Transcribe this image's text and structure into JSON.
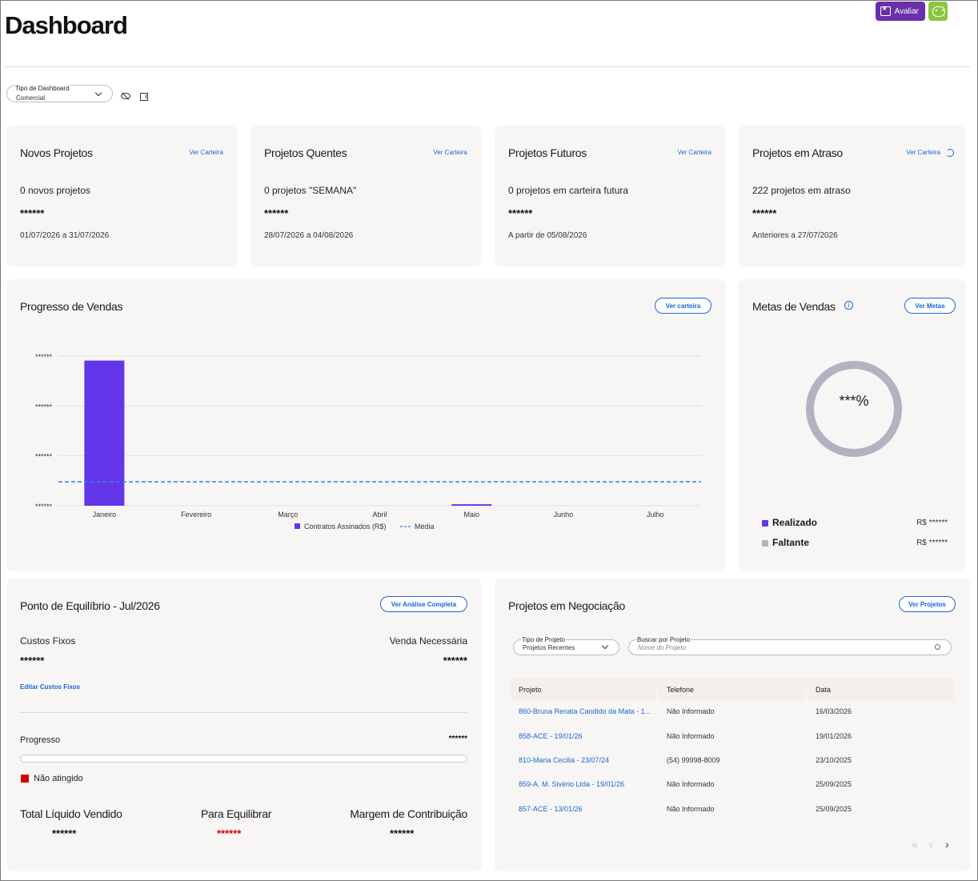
{
  "header": {
    "title": "Dashboard",
    "avaliar_label": "Avaliar"
  },
  "filters": {
    "dashboard_type_label": "Tipo de Dashboard",
    "dashboard_type_value": "Comercial"
  },
  "summary_cards": [
    {
      "title": "Novos Projetos",
      "link": "Ver Carteira",
      "count_text": "0 novos projetos",
      "masked_value": "******",
      "range": "01/07/2026 a 31/07/2026"
    },
    {
      "title": "Projetos Quentes",
      "link": "Ver Carteira",
      "count_text": "0 projetos \"SEMANA\"",
      "masked_value": "******",
      "range": "28/07/2026 a 04/08/2026"
    },
    {
      "title": "Projetos Futuros",
      "link": "Ver Carteira",
      "count_text": "0 projetos em carteira futura",
      "masked_value": "******",
      "range": "A partir de 05/08/2026"
    },
    {
      "title": "Projetos em Atraso",
      "link": "Ver Carteira",
      "count_text": "222 projetos em atraso",
      "masked_value": "******",
      "range": "Anteriores a 27/07/2026"
    }
  ],
  "sales_progress": {
    "title": "Progresso de Vendas",
    "button": "Ver carteira",
    "y_tick_labels": [
      "******",
      "******",
      "******",
      "******"
    ],
    "legend_bars": "Contratos Assinados (R$)",
    "legend_avg": "Média"
  },
  "chart_data": {
    "type": "bar",
    "categories": [
      "Janeiro",
      "Fevereiro",
      "Março",
      "Abril",
      "Maio",
      "Junho",
      "Julho"
    ],
    "series": [
      {
        "name": "Contratos Assinados (R$)",
        "values": [
          0.97,
          0,
          0,
          0,
          0.01,
          0,
          0
        ]
      },
      {
        "name": "Média",
        "values": [
          0.16,
          0.16,
          0.16,
          0.16,
          0.16,
          0.16,
          0.16
        ]
      }
    ],
    "ylim": [
      0,
      1
    ],
    "y_values_masked": true,
    "grid": true,
    "legend_placement": "bottom-center",
    "colors": {
      "bars": "#6236e8",
      "average": "#2f7fe0"
    }
  },
  "sales_goals": {
    "title": "Metas de Vendas",
    "button": "Ver Metas",
    "percent_label": "***%",
    "legend": [
      {
        "name": "Realizado",
        "value": "R$ ******",
        "color": "#6236e8"
      },
      {
        "name": "Faltante",
        "value": "R$ ******",
        "color": "#b1b3c3"
      }
    ]
  },
  "break_even": {
    "title": "Ponto de Equilíbrio - Jul/2026",
    "button": "Ver Análise Completa",
    "fixed_costs_label": "Custos Fixos",
    "fixed_costs_value": "******",
    "needed_sale_label": "Venda Necessária",
    "needed_sale_value": "******",
    "edit_link": "Editar Custos Fixos",
    "progress_label": "Progresso",
    "progress_value": "******",
    "status": "Não atingido",
    "totals": [
      {
        "label": "Total Líquido Vendido",
        "value": "******",
        "color": "#111111"
      },
      {
        "label": "Para Equilibrar",
        "value": "******",
        "color": "#d00000"
      },
      {
        "label": "Margem de Contribuição",
        "value": "******",
        "color": "#111111"
      }
    ]
  },
  "negotiation": {
    "title": "Projetos em Negociação",
    "button": "Ver Projetos",
    "type_label": "Tipo de Projeto",
    "type_value": "Projetos Recentes",
    "search_label": "Buscar por Projeto",
    "search_placeholder": "Nome do Projeto",
    "columns": [
      "Projeto",
      "Telefone",
      "Data"
    ],
    "rows": [
      [
        "860-Bruna Renata Candido da Mata - 1...",
        "Não Informado",
        "16/03/2026"
      ],
      [
        "858-ACE - 19/01/26",
        "Não Informado",
        "19/01/2026"
      ],
      [
        "810-Maria Cecilia - 23/07/24",
        "(54) 99998-8009",
        "23/10/2025"
      ],
      [
        "859-A. M. Sivério Ltda - 19/01/26",
        "Não Informado",
        "25/09/2025"
      ],
      [
        "857-ACE - 13/01/26",
        "Não Informado",
        "25/09/2025"
      ]
    ]
  }
}
